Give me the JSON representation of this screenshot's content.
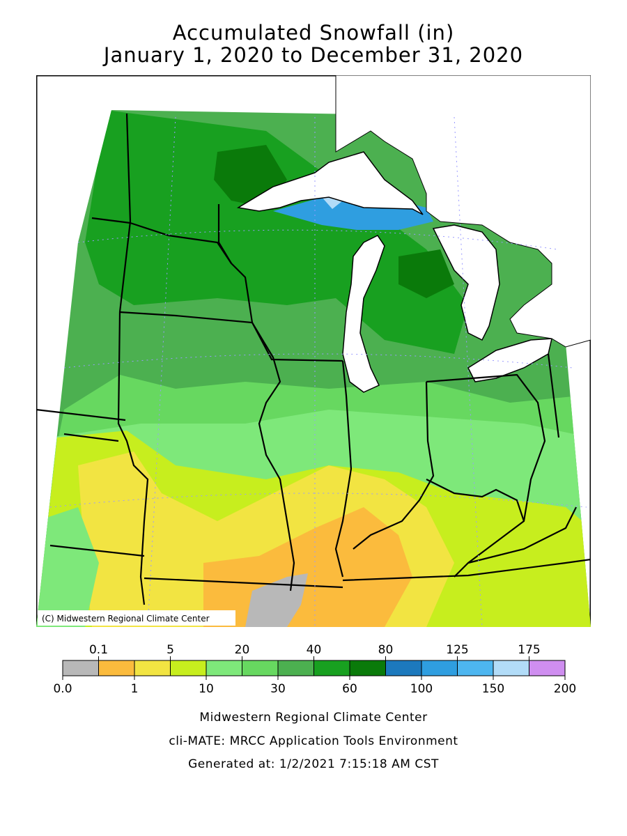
{
  "title": "Accumulated Snowfall (in)",
  "subtitle": "January 1, 2020 to December 31, 2020",
  "map": {
    "copyright": "(C) Midwestern Regional Climate Center",
    "lake_color": "#ffffff",
    "regions": [
      {
        "name": "northern-minnesota",
        "value_range": "30-40",
        "color": "#4cb050"
      },
      {
        "name": "arrowhead-minnesota",
        "value_range": "60-80",
        "color": "#0a7a0a"
      },
      {
        "name": "lake-superior-snowbelt",
        "value_range": "100-150",
        "color": "#2f9ee0"
      },
      {
        "name": "upper-michigan",
        "value_range": "40-60",
        "color": "#18a020"
      },
      {
        "name": "central-midwest",
        "value_range": "20-30",
        "color": "#67d860"
      },
      {
        "name": "southern-midwest",
        "value_range": "5-20",
        "color": "#7ee87a"
      },
      {
        "name": "missouri-ohio-valley",
        "value_range": "1-10",
        "color": "#f2e442"
      },
      {
        "name": "southern-illinois",
        "value_range": "0.1-1",
        "color": "#fbbb3d"
      },
      {
        "name": "bootheel",
        "value_range": "0.0-0.1",
        "color": "#b8b8b8"
      }
    ]
  },
  "legend": {
    "top_labels": [
      "0.1",
      "5",
      "20",
      "40",
      "80",
      "125",
      "175"
    ],
    "bottom_labels": [
      "0.0",
      "1",
      "10",
      "30",
      "60",
      "100",
      "150",
      "200"
    ],
    "colors": [
      "#b8b8b8",
      "#fbbb3d",
      "#f2e442",
      "#c7ee1e",
      "#7ee87a",
      "#67d860",
      "#4cb050",
      "#18a020",
      "#0a7a0a",
      "#1c79bd",
      "#2f9ee0",
      "#4db6f0",
      "#b2dcf8",
      "#cf8ef0"
    ]
  },
  "footer": {
    "line1": "Midwestern Regional Climate Center",
    "line2": "cli-MATE: MRCC Application Tools Environment",
    "line3": "Generated at: 1/2/2021 7:15:18 AM CST"
  }
}
